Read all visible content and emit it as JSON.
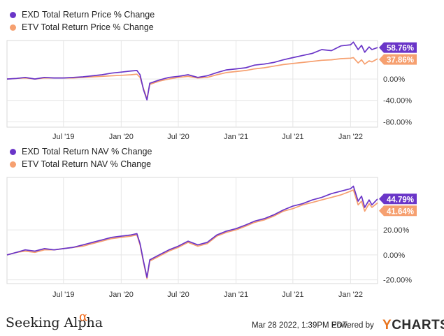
{
  "chart_data": [
    {
      "type": "line",
      "title": "",
      "series": [
        {
          "name": "EXD Total Return Price % Change",
          "color": "#6a35c8",
          "end_label": "58.76%",
          "points": [
            [
              "2019-01-02",
              0
            ],
            [
              "2019-02-01",
              1
            ],
            [
              "2019-03-01",
              3
            ],
            [
              "2019-04-01",
              0
            ],
            [
              "2019-05-01",
              3
            ],
            [
              "2019-06-01",
              2
            ],
            [
              "2019-07-01",
              2
            ],
            [
              "2019-08-01",
              3
            ],
            [
              "2019-09-01",
              4
            ],
            [
              "2019-10-01",
              6
            ],
            [
              "2019-11-01",
              8
            ],
            [
              "2019-12-01",
              11
            ],
            [
              "2020-01-02",
              13
            ],
            [
              "2020-02-01",
              15
            ],
            [
              "2020-02-20",
              16
            ],
            [
              "2020-03-01",
              8
            ],
            [
              "2020-03-12",
              -20
            ],
            [
              "2020-03-23",
              -39
            ],
            [
              "2020-04-01",
              -8
            ],
            [
              "2020-05-01",
              -2
            ],
            [
              "2020-06-01",
              3
            ],
            [
              "2020-07-01",
              5
            ],
            [
              "2020-08-01",
              8
            ],
            [
              "2020-09-01",
              3
            ],
            [
              "2020-10-01",
              6
            ],
            [
              "2020-11-01",
              12
            ],
            [
              "2020-12-01",
              17
            ],
            [
              "2021-01-01",
              19
            ],
            [
              "2021-02-01",
              21
            ],
            [
              "2021-03-01",
              26
            ],
            [
              "2021-04-01",
              28
            ],
            [
              "2021-05-01",
              31
            ],
            [
              "2021-06-01",
              36
            ],
            [
              "2021-07-01",
              40
            ],
            [
              "2021-08-01",
              44
            ],
            [
              "2021-09-01",
              48
            ],
            [
              "2021-10-01",
              55
            ],
            [
              "2021-11-01",
              53
            ],
            [
              "2021-12-01",
              62
            ],
            [
              "2022-01-01",
              64
            ],
            [
              "2022-01-10",
              69
            ],
            [
              "2022-01-25",
              55
            ],
            [
              "2022-02-05",
              63
            ],
            [
              "2022-02-15",
              50
            ],
            [
              "2022-03-01",
              60
            ],
            [
              "2022-03-10",
              55
            ],
            [
              "2022-03-28",
              58.76
            ]
          ]
        },
        {
          "name": "ETV Total Return Price % Change",
          "color": "#f6a070",
          "end_label": "37.86%",
          "points": [
            [
              "2019-01-02",
              0
            ],
            [
              "2019-02-01",
              1
            ],
            [
              "2019-03-01",
              2
            ],
            [
              "2019-04-01",
              0
            ],
            [
              "2019-05-01",
              2
            ],
            [
              "2019-06-01",
              2
            ],
            [
              "2019-07-01",
              2
            ],
            [
              "2019-08-01",
              2
            ],
            [
              "2019-09-01",
              3
            ],
            [
              "2019-10-01",
              4
            ],
            [
              "2019-11-01",
              5
            ],
            [
              "2019-12-01",
              6
            ],
            [
              "2020-01-02",
              7
            ],
            [
              "2020-02-01",
              8
            ],
            [
              "2020-02-20",
              9
            ],
            [
              "2020-03-01",
              3
            ],
            [
              "2020-03-12",
              -18
            ],
            [
              "2020-03-23",
              -37
            ],
            [
              "2020-04-01",
              -10
            ],
            [
              "2020-05-01",
              -4
            ],
            [
              "2020-06-01",
              0
            ],
            [
              "2020-07-01",
              3
            ],
            [
              "2020-08-01",
              5
            ],
            [
              "2020-09-01",
              2
            ],
            [
              "2020-10-01",
              3
            ],
            [
              "2020-11-01",
              8
            ],
            [
              "2020-12-01",
              12
            ],
            [
              "2021-01-01",
              14
            ],
            [
              "2021-02-01",
              16
            ],
            [
              "2021-03-01",
              19
            ],
            [
              "2021-04-01",
              21
            ],
            [
              "2021-05-01",
              24
            ],
            [
              "2021-06-01",
              27
            ],
            [
              "2021-07-01",
              29
            ],
            [
              "2021-08-01",
              31
            ],
            [
              "2021-09-01",
              33
            ],
            [
              "2021-10-01",
              35
            ],
            [
              "2021-11-01",
              36
            ],
            [
              "2021-12-01",
              38
            ],
            [
              "2022-01-01",
              39
            ],
            [
              "2022-01-10",
              40
            ],
            [
              "2022-01-25",
              30
            ],
            [
              "2022-02-05",
              36
            ],
            [
              "2022-02-15",
              28
            ],
            [
              "2022-03-01",
              34
            ],
            [
              "2022-03-10",
              32
            ],
            [
              "2022-03-28",
              37.86
            ]
          ]
        }
      ],
      "y_ticks": [
        "0.00%",
        "-40.00%",
        "-80.00%"
      ],
      "y_tick_values": [
        0,
        -40,
        -80
      ],
      "ylim": [
        -90,
        72
      ],
      "x_ticks": [
        "Jul '19",
        "Jan '20",
        "Jul '20",
        "Jan '21",
        "Jul '21",
        "Jan '22"
      ],
      "x_tick_dates": [
        "2019-07-01",
        "2020-01-01",
        "2020-07-01",
        "2021-01-01",
        "2021-07-01",
        "2022-01-01"
      ],
      "xlim": [
        "2019-01-02",
        "2022-03-28"
      ],
      "grid": true,
      "legend": "top-left"
    },
    {
      "type": "line",
      "title": "",
      "series": [
        {
          "name": "EXD Total Return NAV % Change",
          "color": "#6a35c8",
          "end_label": "44.79%",
          "points": [
            [
              "2019-01-02",
              0
            ],
            [
              "2019-02-01",
              2
            ],
            [
              "2019-03-01",
              4
            ],
            [
              "2019-04-01",
              3
            ],
            [
              "2019-05-01",
              5
            ],
            [
              "2019-06-01",
              4
            ],
            [
              "2019-07-01",
              5
            ],
            [
              "2019-08-01",
              6
            ],
            [
              "2019-09-01",
              8
            ],
            [
              "2019-10-01",
              10
            ],
            [
              "2019-11-01",
              12
            ],
            [
              "2019-12-01",
              14
            ],
            [
              "2020-01-02",
              15
            ],
            [
              "2020-02-01",
              16
            ],
            [
              "2020-02-20",
              17
            ],
            [
              "2020-03-01",
              9
            ],
            [
              "2020-03-12",
              -5
            ],
            [
              "2020-03-23",
              -18
            ],
            [
              "2020-04-01",
              -4
            ],
            [
              "2020-05-01",
              0
            ],
            [
              "2020-06-01",
              4
            ],
            [
              "2020-07-01",
              7
            ],
            [
              "2020-08-01",
              11
            ],
            [
              "2020-09-01",
              8
            ],
            [
              "2020-10-01",
              10
            ],
            [
              "2020-11-01",
              16
            ],
            [
              "2020-12-01",
              19
            ],
            [
              "2021-01-01",
              21
            ],
            [
              "2021-02-01",
              24
            ],
            [
              "2021-03-01",
              27
            ],
            [
              "2021-04-01",
              29
            ],
            [
              "2021-05-01",
              32
            ],
            [
              "2021-06-01",
              36
            ],
            [
              "2021-07-01",
              39
            ],
            [
              "2021-08-01",
              41
            ],
            [
              "2021-09-01",
              44
            ],
            [
              "2021-10-01",
              46
            ],
            [
              "2021-11-01",
              49
            ],
            [
              "2021-12-01",
              51
            ],
            [
              "2022-01-01",
              53
            ],
            [
              "2022-01-10",
              55
            ],
            [
              "2022-01-25",
              43
            ],
            [
              "2022-02-05",
              47
            ],
            [
              "2022-02-15",
              38
            ],
            [
              "2022-03-01",
              44
            ],
            [
              "2022-03-10",
              40
            ],
            [
              "2022-03-28",
              44.79
            ]
          ]
        },
        {
          "name": "ETV Total Return NAV % Change",
          "color": "#f6a070",
          "end_label": "41.64%",
          "points": [
            [
              "2019-01-02",
              0
            ],
            [
              "2019-02-01",
              2
            ],
            [
              "2019-03-01",
              3
            ],
            [
              "2019-04-01",
              2
            ],
            [
              "2019-05-01",
              4
            ],
            [
              "2019-06-01",
              4
            ],
            [
              "2019-07-01",
              5
            ],
            [
              "2019-08-01",
              6
            ],
            [
              "2019-09-01",
              7
            ],
            [
              "2019-10-01",
              9
            ],
            [
              "2019-11-01",
              11
            ],
            [
              "2019-12-01",
              13
            ],
            [
              "2020-01-02",
              14
            ],
            [
              "2020-02-01",
              15
            ],
            [
              "2020-02-20",
              16
            ],
            [
              "2020-03-01",
              8
            ],
            [
              "2020-03-12",
              -6
            ],
            [
              "2020-03-23",
              -19
            ],
            [
              "2020-04-01",
              -5
            ],
            [
              "2020-05-01",
              -1
            ],
            [
              "2020-06-01",
              3
            ],
            [
              "2020-07-01",
              6
            ],
            [
              "2020-08-01",
              10
            ],
            [
              "2020-09-01",
              7
            ],
            [
              "2020-10-01",
              9
            ],
            [
              "2020-11-01",
              15
            ],
            [
              "2020-12-01",
              18
            ],
            [
              "2021-01-01",
              20
            ],
            [
              "2021-02-01",
              23
            ],
            [
              "2021-03-01",
              26
            ],
            [
              "2021-04-01",
              28
            ],
            [
              "2021-05-01",
              31
            ],
            [
              "2021-06-01",
              35
            ],
            [
              "2021-07-01",
              37
            ],
            [
              "2021-08-01",
              40
            ],
            [
              "2021-09-01",
              42
            ],
            [
              "2021-10-01",
              44
            ],
            [
              "2021-11-01",
              46
            ],
            [
              "2021-12-01",
              48
            ],
            [
              "2022-01-01",
              51
            ],
            [
              "2022-01-10",
              52
            ],
            [
              "2022-01-25",
              40
            ],
            [
              "2022-02-05",
              43
            ],
            [
              "2022-02-15",
              35
            ],
            [
              "2022-03-01",
              41
            ],
            [
              "2022-03-10",
              38
            ],
            [
              "2022-03-28",
              41.64
            ]
          ]
        }
      ],
      "y_ticks": [
        "20.00%",
        "0.00%",
        "-20.00%"
      ],
      "y_tick_values": [
        20,
        0,
        -20
      ],
      "ylim": [
        -23,
        62
      ],
      "x_ticks": [
        "Jul '19",
        "Jan '20",
        "Jul '20",
        "Jan '21",
        "Jul '21",
        "Jan '22"
      ],
      "x_tick_dates": [
        "2019-07-01",
        "2020-01-01",
        "2020-07-01",
        "2021-01-01",
        "2021-07-01",
        "2022-01-01"
      ],
      "xlim": [
        "2019-01-02",
        "2022-03-28"
      ],
      "grid": true,
      "legend": "top-left"
    }
  ],
  "footer": {
    "brand": "Seeking Alpha",
    "brand_mark": "α",
    "timestamp": "Mar 28 2022, 1:39PM EDT.",
    "powered_by": "Powered by",
    "ycharts_y": "Y",
    "ycharts_rest": "CHARTS"
  }
}
